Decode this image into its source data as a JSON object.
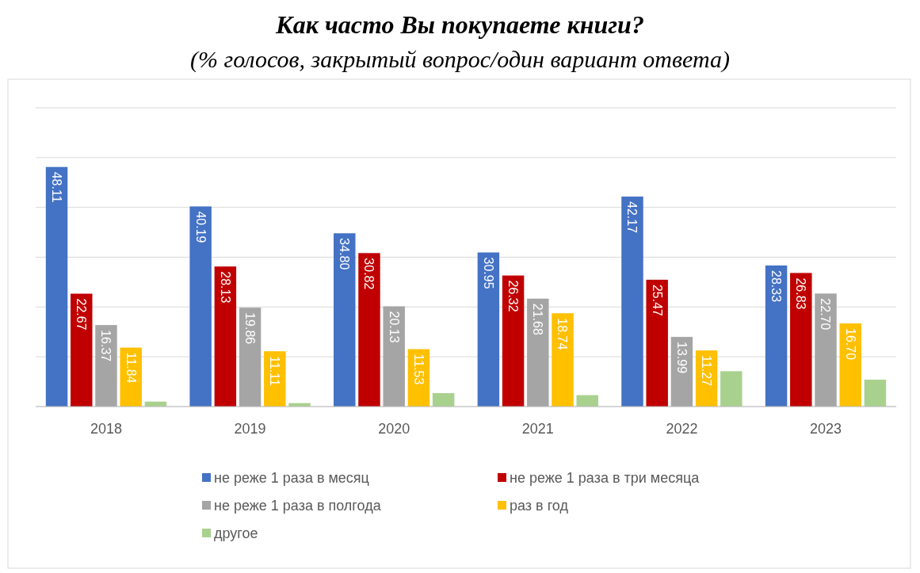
{
  "chart_data": {
    "type": "bar",
    "title": "Как часто Вы покупаете книги?",
    "subtitle": "(% голосов, закрытый вопрос/один вариант ответа)",
    "categories": [
      "2018",
      "2019",
      "2020",
      "2021",
      "2022",
      "2023"
    ],
    "series": [
      {
        "name": "не реже 1 раза в месяц",
        "color": "#4472c4",
        "values": [
          48.11,
          40.19,
          34.8,
          30.95,
          42.17,
          28.33
        ],
        "value_labels": [
          "48.11",
          "40.19",
          "34.80",
          "30.95",
          "42.17",
          "28.33"
        ]
      },
      {
        "name": "не реже 1 раза в три месяца",
        "color": "#c00000",
        "values": [
          22.67,
          28.13,
          30.82,
          26.32,
          25.47,
          26.83
        ],
        "value_labels": [
          "22.67",
          "28.13",
          "30.82",
          "26.32",
          "25.47",
          "26.83"
        ]
      },
      {
        "name": "не реже 1 раза в полгода",
        "color": "#a5a5a5",
        "values": [
          16.37,
          19.86,
          20.13,
          21.68,
          13.99,
          22.7
        ],
        "value_labels": [
          "16.37",
          "19.86",
          "20.13",
          "21.68",
          "13.99",
          "22.70"
        ]
      },
      {
        "name": "раз в год",
        "color": "#ffc000",
        "values": [
          11.84,
          11.11,
          11.53,
          18.74,
          11.27,
          16.7
        ],
        "value_labels": [
          "11.84",
          "11.11",
          "11.53",
          "18.74",
          "11.27",
          "16.70"
        ]
      },
      {
        "name": "другое",
        "color": "#a9d18e",
        "values": [
          1.0,
          0.7,
          2.7,
          2.3,
          7.1,
          5.4
        ]
      }
    ],
    "ylim": [
      0,
      60
    ],
    "yticks": [
      {
        "value": 0,
        "label": null
      },
      {
        "value": 10,
        "label": null
      },
      {
        "value": 20,
        "label": null
      },
      {
        "value": 30,
        "label": null
      },
      {
        "value": 40,
        "label": null
      },
      {
        "value": 50,
        "label": null
      },
      {
        "value": 60,
        "label": null
      }
    ],
    "tick_labels": "x",
    "grid": "y",
    "legend": "bottom"
  }
}
